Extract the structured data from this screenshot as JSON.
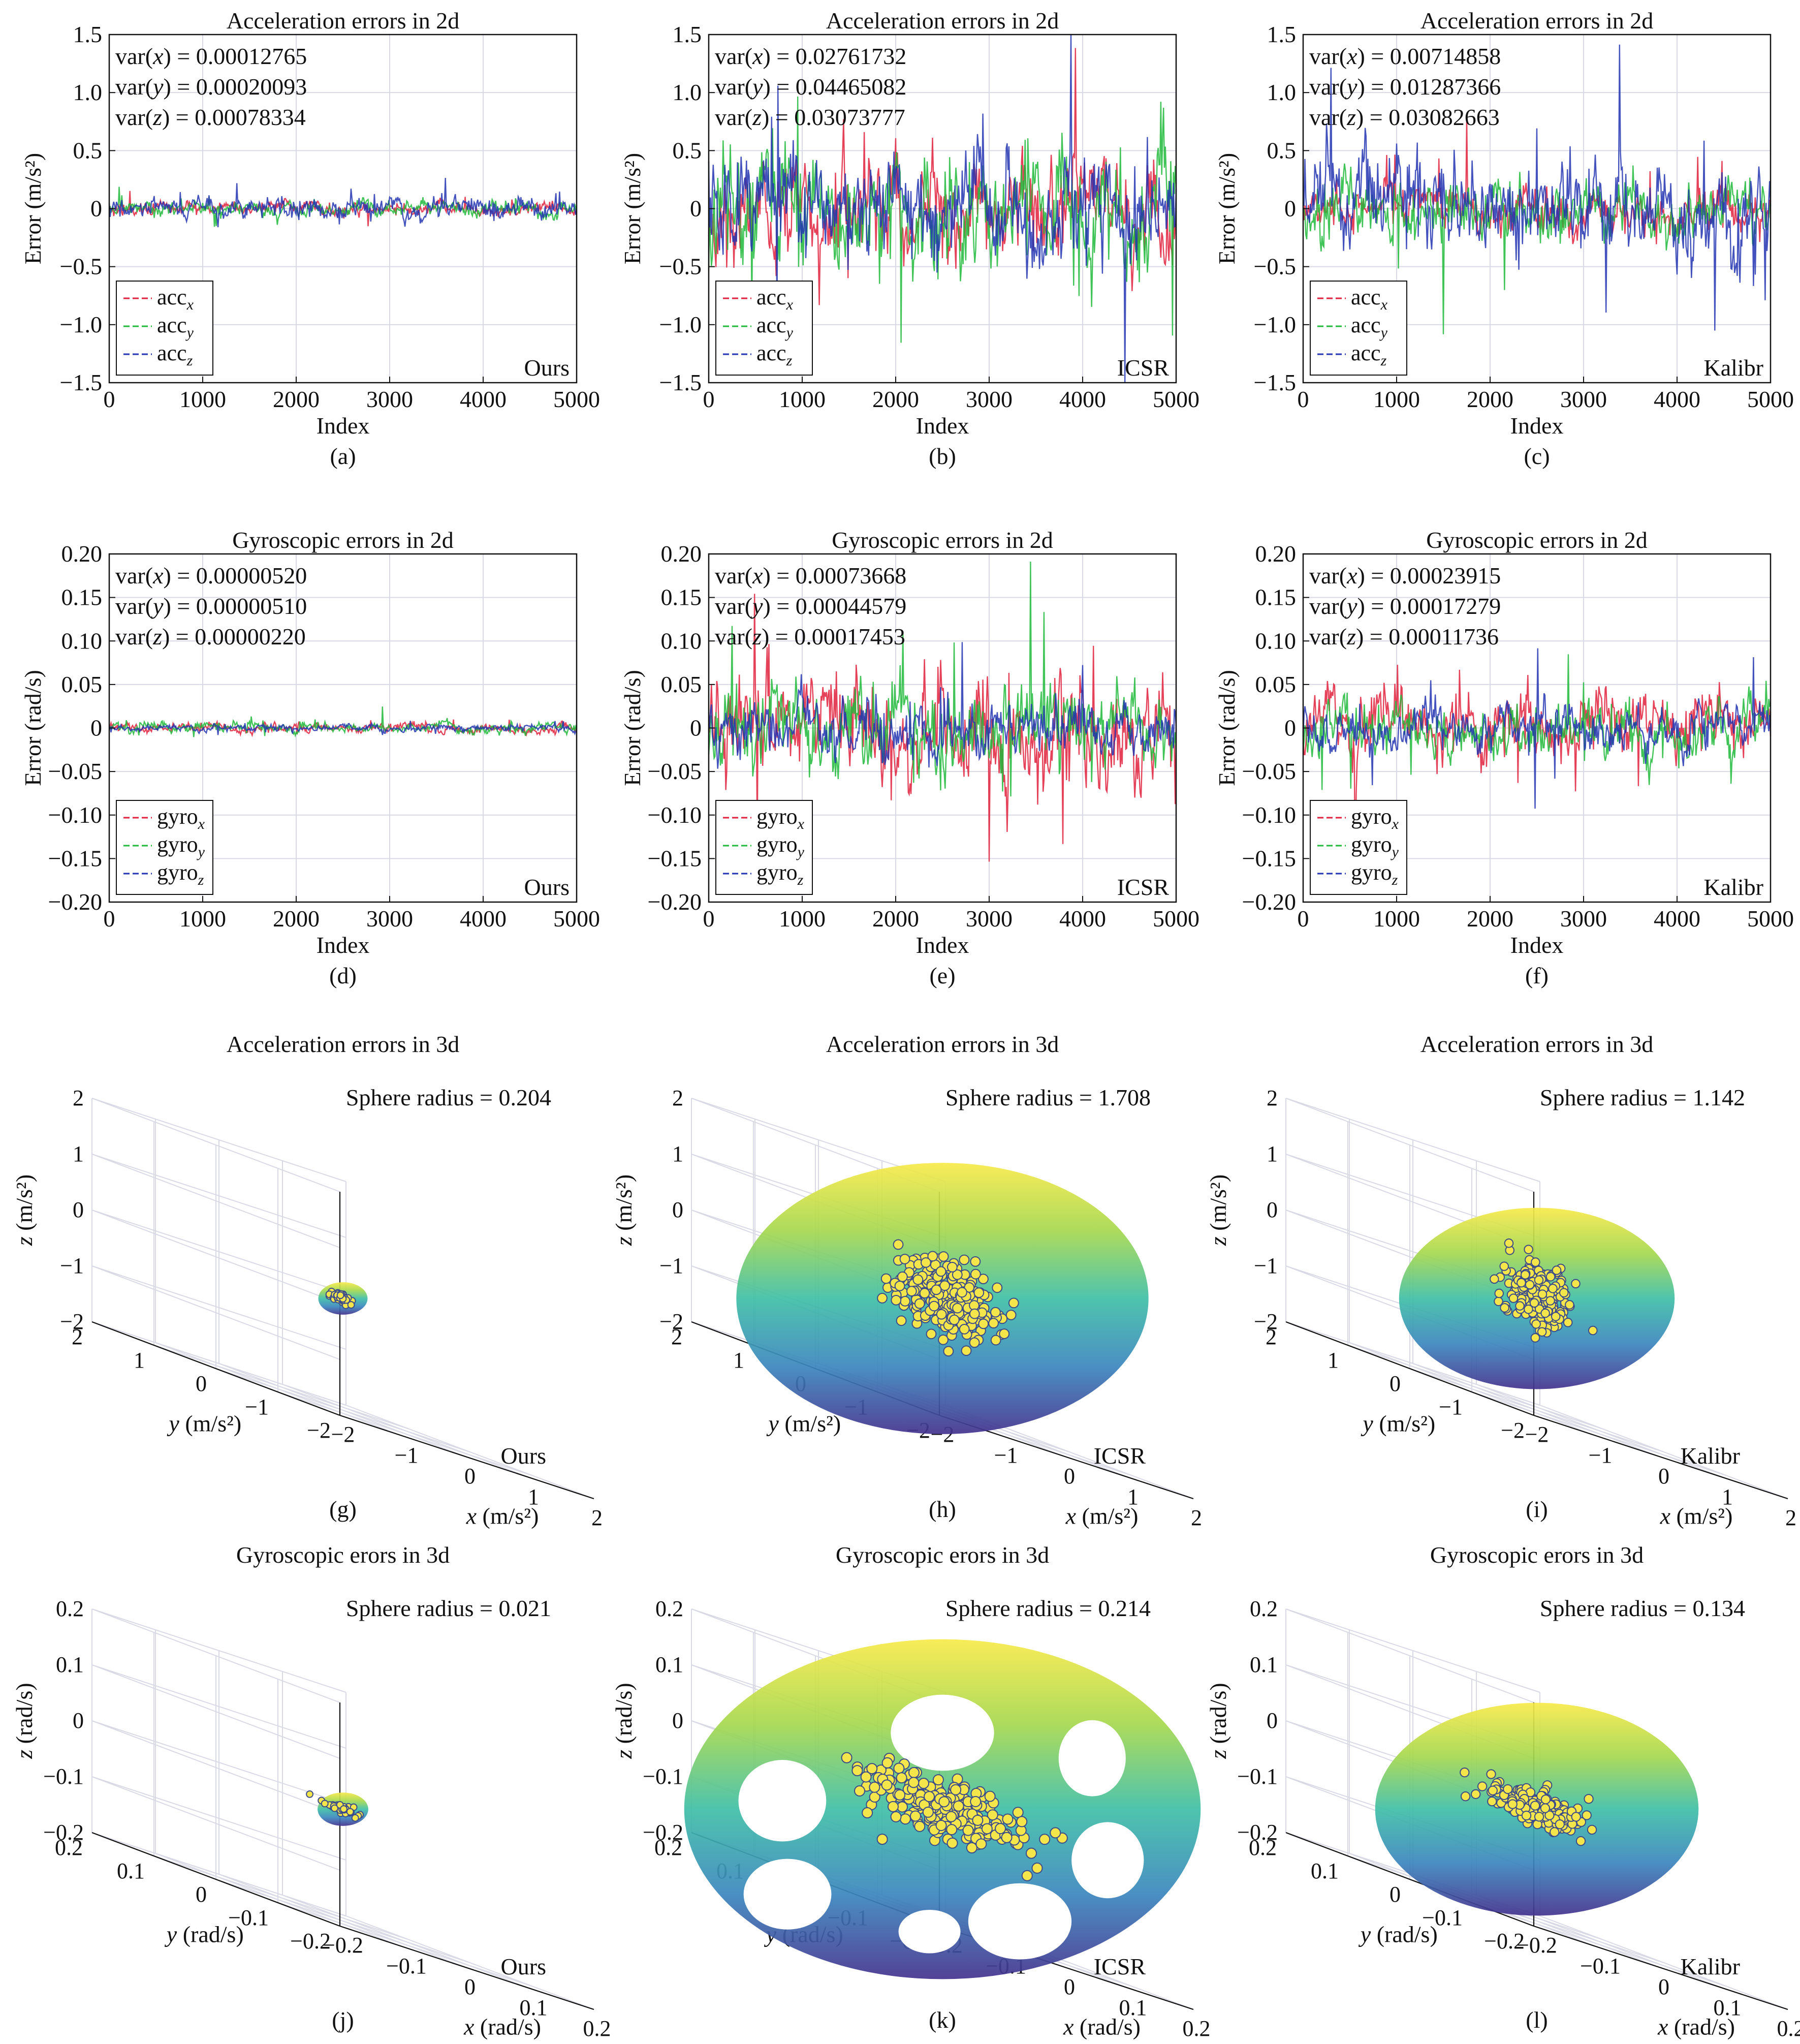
{
  "colors": {
    "x": "#e0203c",
    "y": "#1fba3a",
    "z": "#2234b0",
    "axis": "#111111",
    "grid": "#d9d9e6",
    "marker_fill": "#f4e64a",
    "marker_edge": "#3a4a8a",
    "sphere_top": "#f4e64a",
    "sphere_mid": "#35b7a8",
    "sphere_bottom": "#3e2f8a"
  },
  "charts": [
    {
      "panel": "a",
      "caption": "(a)",
      "type": "line",
      "title": "Acceleration errors in 2d",
      "xlabel": "Index",
      "ylabel": "Error (m/s²)",
      "xlim": [
        0,
        5000
      ],
      "ylim": [
        -1.5,
        1.5
      ],
      "xticks": [
        "0",
        "1000",
        "2000",
        "3000",
        "4000",
        "5000"
      ],
      "yticks": [
        "1.5",
        "1.0",
        "0.5",
        "0",
        "−0.5",
        "−1.0",
        "−1.5"
      ],
      "legend_pos": "bottom-left",
      "legend_style": "dashed-prefix",
      "legend": [
        {
          "base": "acc",
          "sub": "x"
        },
        {
          "base": "acc",
          "sub": "y"
        },
        {
          "base": "acc",
          "sub": "z"
        }
      ],
      "method": "Ours",
      "vars": [
        {
          "label": "var(x) = 0.00012765"
        },
        {
          "label": "var(y) = 0.00020093"
        },
        {
          "label": "var(z) = 0.00078334"
        }
      ],
      "series_amp": [
        0.025,
        0.028,
        0.04
      ],
      "seed": 11
    },
    {
      "panel": "b",
      "caption": "(b)",
      "type": "line",
      "title": "Acceleration errors in 2d",
      "xlabel": "Index",
      "ylabel": "Error (m/s²)",
      "xlim": [
        0,
        5000
      ],
      "ylim": [
        -1.5,
        1.5
      ],
      "xticks": [
        "0",
        "1000",
        "2000",
        "3000",
        "4000",
        "5000"
      ],
      "yticks": [
        "1.5",
        "1.0",
        "0.5",
        "0",
        "−0.5",
        "−1.0",
        "−1.5"
      ],
      "legend_pos": "bottom-left",
      "legend_style": "plain",
      "legend": [
        {
          "base": "acc",
          "sub": "x"
        },
        {
          "base": "acc",
          "sub": "y"
        },
        {
          "base": "acc",
          "sub": "z"
        }
      ],
      "method": "ICSR",
      "vars": [
        {
          "label": "var(x) = 0.02761732"
        },
        {
          "label": "var(y) = 0.04465082"
        },
        {
          "label": "var(z) = 0.03073777"
        }
      ],
      "series_amp": [
        0.17,
        0.21,
        0.18
      ],
      "seed": 23
    },
    {
      "panel": "c",
      "caption": "(c)",
      "type": "line",
      "title": "Acceleration errors in 2d",
      "xlabel": "Index",
      "ylabel": "Error (m/s²)",
      "xlim": [
        0,
        5000
      ],
      "ylim": [
        -1.5,
        1.5
      ],
      "xticks": [
        "0",
        "1000",
        "2000",
        "3000",
        "4000",
        "5000"
      ],
      "yticks": [
        "1.5",
        "1.0",
        "0.5",
        "0",
        "−0.5",
        "−1.0",
        "−1.5"
      ],
      "legend_pos": "bottom-left",
      "legend_style": "plain",
      "legend": [
        {
          "base": "acc",
          "sub": "x"
        },
        {
          "base": "acc",
          "sub": "y"
        },
        {
          "base": "acc",
          "sub": "z"
        }
      ],
      "method": "Kalibr",
      "vars": [
        {
          "label": "var(x) = 0.00714858"
        },
        {
          "label": "var(y) = 0.01287366"
        },
        {
          "label": "var(z) = 0.03082663"
        }
      ],
      "series_amp": [
        0.085,
        0.11,
        0.18
      ],
      "seed": 37
    },
    {
      "panel": "d",
      "caption": "(d)",
      "type": "line",
      "title": "Gyroscopic errors in 2d",
      "xlabel": "Index",
      "ylabel": "Error (rad/s)",
      "xlim": [
        0,
        5000
      ],
      "ylim": [
        -0.2,
        0.2
      ],
      "xticks": [
        "0",
        "1000",
        "2000",
        "3000",
        "4000",
        "5000"
      ],
      "yticks": [
        "0.20",
        "0.15",
        "0.10",
        "0.05",
        "0",
        "−0.05",
        "−0.10",
        "−0.15",
        "−0.20"
      ],
      "legend_pos": "bottom-left",
      "legend_style": "dashed-prefix",
      "legend": [
        {
          "base": "gyro",
          "sub": "x"
        },
        {
          "base": "gyro",
          "sub": "y"
        },
        {
          "base": "gyro",
          "sub": "z"
        }
      ],
      "method": "Ours",
      "vars": [
        {
          "label": "var(x) = 0.00000520"
        },
        {
          "label": "var(y) = 0.00000510"
        },
        {
          "label": "var(z) = 0.00000220"
        }
      ],
      "series_amp": [
        0.0025,
        0.0025,
        0.0016
      ],
      "seed": 41
    },
    {
      "panel": "e",
      "caption": "(e)",
      "type": "line",
      "title": "Gyroscopic errors in 2d",
      "xlabel": "Index",
      "ylabel": "Error (rad/s)",
      "xlim": [
        0,
        5000
      ],
      "ylim": [
        -0.2,
        0.2
      ],
      "xticks": [
        "0",
        "1000",
        "2000",
        "3000",
        "4000",
        "5000"
      ],
      "yticks": [
        "0.20",
        "0.15",
        "0.10",
        "0.05",
        "0",
        "−0.05",
        "−0.10",
        "−0.15",
        "−0.20"
      ],
      "legend_pos": "bottom-left",
      "legend_style": "plain",
      "legend": [
        {
          "base": "gyro",
          "sub": "x"
        },
        {
          "base": "gyro",
          "sub": "y"
        },
        {
          "base": "gyro",
          "sub": "z"
        }
      ],
      "method": "ICSR",
      "vars": [
        {
          "label": "var(x) = 0.00073668"
        },
        {
          "label": "var(y) = 0.00044579"
        },
        {
          "label": "var(z) = 0.00017453"
        }
      ],
      "series_amp": [
        0.027,
        0.021,
        0.013
      ],
      "seed": 53
    },
    {
      "panel": "f",
      "caption": "(f)",
      "type": "line",
      "title": "Gyroscopic errors in 2d",
      "xlabel": "Index",
      "ylabel": "Error (rad/s)",
      "xlim": [
        0,
        5000
      ],
      "ylim": [
        -0.2,
        0.2
      ],
      "xticks": [
        "0",
        "1000",
        "2000",
        "3000",
        "4000",
        "5000"
      ],
      "yticks": [
        "0.20",
        "0.15",
        "0.10",
        "0.05",
        "0",
        "−0.05",
        "−0.10",
        "−0.15",
        "−0.20"
      ],
      "legend_pos": "bottom-left",
      "legend_style": "plain",
      "legend": [
        {
          "base": "gyro",
          "sub": "x"
        },
        {
          "base": "gyro",
          "sub": "y"
        },
        {
          "base": "gyro",
          "sub": "z"
        }
      ],
      "method": "Kalibr",
      "vars": [
        {
          "label": "var(x) = 0.00023915"
        },
        {
          "label": "var(y) = 0.00017279"
        },
        {
          "label": "var(z) = 0.00011736"
        }
      ],
      "series_amp": [
        0.015,
        0.013,
        0.011
      ],
      "seed": 67
    },
    {
      "panel": "g",
      "caption": "(g)",
      "type": "scatter",
      "title": "Acceleration errors in 3d",
      "xlabel": "x (m/s²)",
      "ylabel": "y (m/s²)",
      "zlabel": "z (m/s²)",
      "ticks": [
        "−2",
        "−1",
        "0",
        "1",
        "2"
      ],
      "axis_range": [
        -2,
        2
      ],
      "tick_values": [
        -2,
        -1,
        0,
        1,
        2
      ],
      "radius_label": "Sphere radius = 0.204",
      "radius": 0.204,
      "method": "Ours",
      "cloud_spread": [
        0.06,
        0.05,
        0.04
      ],
      "n_points": 60,
      "sphere_style": "solid",
      "seed": 71
    },
    {
      "panel": "h",
      "caption": "(h)",
      "type": "scatter",
      "title": "Acceleration errors in 3d",
      "xlabel": "x (m/s²)",
      "ylabel": "y (m/s²)",
      "zlabel": "z (m/s²)",
      "ticks": [
        "−2",
        "−1",
        "0",
        "1",
        "2"
      ],
      "axis_range": [
        -2,
        2
      ],
      "tick_values": [
        -2,
        -1,
        0,
        1,
        2
      ],
      "radius_label": "Sphere radius = 1.708",
      "radius": 1.708,
      "method": "ICSR",
      "cloud_spread": [
        0.35,
        0.25,
        0.3
      ],
      "n_points": 260,
      "sphere_style": "solid",
      "seed": 83
    },
    {
      "panel": "i",
      "caption": "(i)",
      "type": "scatter",
      "title": "Acceleration errors in 3d",
      "xlabel": "x (m/s²)",
      "ylabel": "y (m/s²)",
      "zlabel": "z (m/s²)",
      "ticks": [
        "−2",
        "−1",
        "0",
        "1",
        "2"
      ],
      "axis_range": [
        -2,
        2
      ],
      "tick_values": [
        -2,
        -1,
        0,
        1,
        2
      ],
      "radius_label": "Sphere radius = 1.142",
      "radius": 1.142,
      "method": "Kalibr",
      "cloud_spread": [
        0.22,
        0.18,
        0.3
      ],
      "n_points": 200,
      "sphere_style": "solid",
      "seed": 97
    },
    {
      "panel": "j",
      "caption": "(j)",
      "type": "scatter",
      "title": "Gyroscopic erors in 3d",
      "xlabel": "x (rad/s)",
      "ylabel": "y (rad/s)",
      "zlabel": "z (rad/s)",
      "ticks": [
        "−0.2",
        "−0.1",
        "0",
        "0.1",
        "0.2"
      ],
      "axis_range": [
        -0.2,
        0.2
      ],
      "tick_values": [
        -0.2,
        -0.1,
        0,
        0.1,
        0.2
      ],
      "radius_label": "Sphere radius = 0.021",
      "radius": 0.021,
      "method": "Ours",
      "cloud_spread": [
        0.012,
        0.01,
        0.004
      ],
      "n_points": 40,
      "sphere_style": "solid",
      "seed": 101
    },
    {
      "panel": "k",
      "caption": "(k)",
      "type": "scatter",
      "title": "Gyroscopic erors in 3d",
      "xlabel": "x (rad/s)",
      "ylabel": "y (rad/s)",
      "zlabel": "z (rad/s)",
      "ticks": [
        "−0.2",
        "−0.1",
        "0",
        "0.1",
        "0.2"
      ],
      "axis_range": [
        -0.2,
        0.2
      ],
      "tick_values": [
        -0.2,
        -0.1,
        0,
        0.1,
        0.2
      ],
      "radius_label": "Sphere radius = 0.214",
      "radius": 0.214,
      "method": "ICSR",
      "cloud_spread": [
        0.05,
        0.035,
        0.025
      ],
      "n_points": 220,
      "sphere_style": "holes",
      "seed": 113
    },
    {
      "panel": "l",
      "caption": "(l)",
      "type": "scatter",
      "title": "Gyroscopic erors in 3d",
      "xlabel": "x (rad/s)",
      "ylabel": "y (rad/s)",
      "zlabel": "z (rad/s)",
      "ticks": [
        "−0.2",
        "−0.1",
        "0",
        "0.1",
        "0.2"
      ],
      "axis_range": [
        -0.2,
        0.2
      ],
      "tick_values": [
        -0.2,
        -0.1,
        0,
        0.1,
        0.2
      ],
      "radius_label": "Sphere radius = 0.134",
      "radius": 0.134,
      "method": "Kalibr",
      "cloud_spread": [
        0.03,
        0.025,
        0.015
      ],
      "n_points": 200,
      "sphere_style": "solid",
      "seed": 127
    }
  ]
}
